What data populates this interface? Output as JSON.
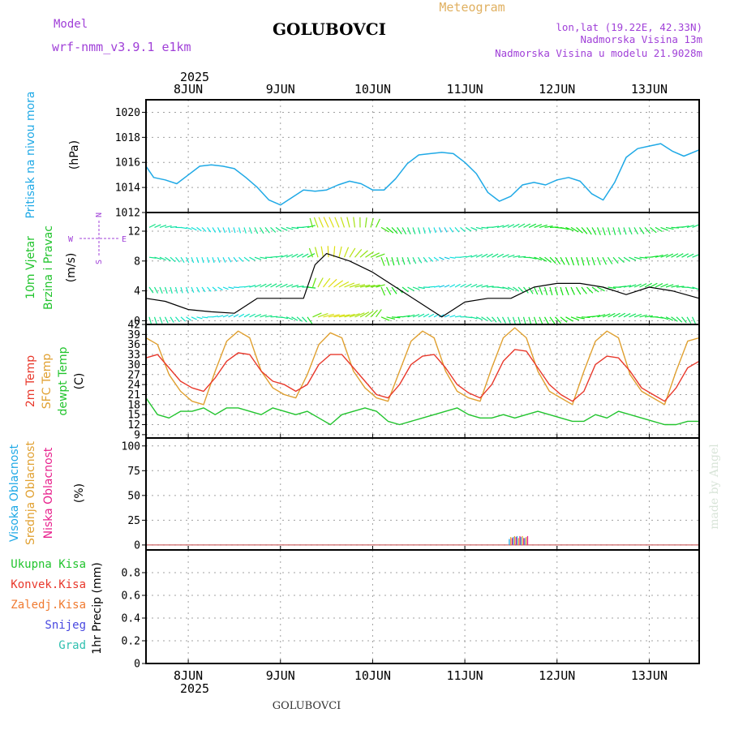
{
  "header": {
    "model_label": "Model",
    "model_name": "wrf-nmm_v3.9.1 e1km",
    "station": "GOLUBOVCI",
    "meteogram": "Meteogram",
    "lonlat": "lon,lat (19.22E, 42.33N)",
    "altitude": "Nadmorska Visina 13m",
    "model_altitude": "Nadmorska Visina u modelu 21.9028m"
  },
  "footer": {
    "station": "GOLUBOVCI",
    "credit": "made by Angel"
  },
  "colors": {
    "pressure": "#1fa9e6",
    "temp2m": "#e8382b",
    "sfc": "#e0a030",
    "dewpt": "#22c42e",
    "purple": "#a040d8",
    "axis": "#000000",
    "grid": "#a0a0a0"
  },
  "chart_data": [
    {
      "type": "line",
      "panel": "pressure",
      "ylabel_main": "Pritisak na nivou mora",
      "ylabel_unit": "(hPa)",
      "ylim": [
        1012,
        1021
      ],
      "yticks": [
        "1012",
        "1014",
        "1016",
        "1018",
        "1020"
      ],
      "x_start": "2025-06-07 13:00",
      "x_end": "2025-06-13 13:00",
      "x": [
        "2025-06-07 13:00",
        "2025-06-07 15:00",
        "2025-06-07 18:00",
        "2025-06-07 21:00",
        "2025-06-08 00:00",
        "2025-06-08 03:00",
        "2025-06-08 06:00",
        "2025-06-08 09:00",
        "2025-06-08 12:00",
        "2025-06-08 15:00",
        "2025-06-08 18:00",
        "2025-06-08 21:00",
        "2025-06-09 00:00",
        "2025-06-09 03:00",
        "2025-06-09 06:00",
        "2025-06-09 09:00",
        "2025-06-09 12:00",
        "2025-06-09 15:00",
        "2025-06-09 18:00",
        "2025-06-09 21:00",
        "2025-06-10 00:00",
        "2025-06-10 03:00",
        "2025-06-10 06:00",
        "2025-06-10 09:00",
        "2025-06-10 12:00",
        "2025-06-10 15:00",
        "2025-06-10 18:00",
        "2025-06-10 21:00",
        "2025-06-11 00:00",
        "2025-06-11 03:00",
        "2025-06-11 06:00",
        "2025-06-11 09:00",
        "2025-06-11 12:00",
        "2025-06-11 15:00",
        "2025-06-11 18:00",
        "2025-06-11 21:00",
        "2025-06-12 00:00",
        "2025-06-12 03:00",
        "2025-06-12 06:00",
        "2025-06-12 09:00",
        "2025-06-12 12:00",
        "2025-06-12 15:00",
        "2025-06-12 18:00",
        "2025-06-12 21:00",
        "2025-06-13 00:00",
        "2025-06-13 03:00",
        "2025-06-13 06:00",
        "2025-06-13 09:00",
        "2025-06-13 13:00"
      ],
      "series": [
        {
          "values": [
            1015.7,
            1014.8,
            1014.6,
            1014.3,
            1015.0,
            1015.7,
            1015.8,
            1015.7,
            1015.5,
            1014.8,
            1014.0,
            1013.0,
            1012.6,
            1013.2,
            1013.8,
            1013.7,
            1013.8,
            1014.2,
            1014.5,
            1014.3,
            1013.8,
            1013.8,
            1014.7,
            1015.9,
            1016.6,
            1016.7,
            1016.8,
            1016.7,
            1016.0,
            1015.1,
            1013.6,
            1012.9,
            1013.3,
            1014.2,
            1014.4,
            1014.2,
            1014.6,
            1014.8,
            1014.5,
            1013.5,
            1013.0,
            1014.4,
            1016.4,
            1017.1,
            1017.3,
            1017.5,
            1016.9,
            1016.5,
            1017.0
          ]
        }
      ]
    },
    {
      "type": "line",
      "panel": "wind",
      "ylabel_main": "10m Vjetar",
      "ylabel_second": "Brzina i Pravac",
      "ylabel_unit": "(m/s)",
      "compass": {
        "n": "N",
        "w": "W",
        "e": "E",
        "s": "S"
      },
      "ylim": [
        -0.5,
        14.5
      ],
      "yticks": [
        "0",
        "4",
        "8",
        "12"
      ],
      "x_start": "2025-06-07 13:00",
      "x_end": "2025-06-13 13:00",
      "x": [
        "2025-06-07 13:00",
        "2025-06-07 18:00",
        "2025-06-08 00:00",
        "2025-06-08 06:00",
        "2025-06-08 12:00",
        "2025-06-08 18:00",
        "2025-06-09 00:00",
        "2025-06-09 06:00",
        "2025-06-09 09:00",
        "2025-06-09 12:00",
        "2025-06-09 18:00",
        "2025-06-10 00:00",
        "2025-06-10 06:00",
        "2025-06-10 12:00",
        "2025-06-10 18:00",
        "2025-06-11 00:00",
        "2025-06-11 06:00",
        "2025-06-11 12:00",
        "2025-06-11 18:00",
        "2025-06-12 00:00",
        "2025-06-12 06:00",
        "2025-06-12 12:00",
        "2025-06-12 18:00",
        "2025-06-13 00:00",
        "2025-06-13 06:00",
        "2025-06-13 13:00"
      ],
      "series": [
        {
          "values": [
            3.0,
            2.6,
            1.5,
            1.2,
            1.0,
            3.0,
            3.0,
            3.0,
            7.5,
            9.0,
            8.0,
            6.5,
            4.5,
            2.5,
            0.5,
            2.5,
            3.0,
            3.0,
            4.5,
            5.0,
            5.0,
            4.5,
            3.5,
            4.5,
            4.0,
            3.0
          ]
        }
      ]
    },
    {
      "type": "line",
      "panel": "temperature",
      "ylabel_lines": [
        "2m Temp",
        "SFC Temp",
        "dewpt Temp"
      ],
      "ylabel_unit": "(C)",
      "ylim": [
        8,
        42
      ],
      "yticks": [
        "9",
        "12",
        "15",
        "18",
        "21",
        "24",
        "27",
        "30",
        "33",
        "36",
        "39",
        "42"
      ],
      "x_start": "2025-06-07 13:00",
      "x_end": "2025-06-13 13:00",
      "x": [
        "2025-06-07 13:00",
        "2025-06-07 16:00",
        "2025-06-07 19:00",
        "2025-06-07 22:00",
        "2025-06-08 01:00",
        "2025-06-08 04:00",
        "2025-06-08 07:00",
        "2025-06-08 10:00",
        "2025-06-08 13:00",
        "2025-06-08 16:00",
        "2025-06-08 19:00",
        "2025-06-08 22:00",
        "2025-06-09 01:00",
        "2025-06-09 04:00",
        "2025-06-09 07:00",
        "2025-06-09 10:00",
        "2025-06-09 13:00",
        "2025-06-09 16:00",
        "2025-06-09 19:00",
        "2025-06-09 22:00",
        "2025-06-10 01:00",
        "2025-06-10 04:00",
        "2025-06-10 07:00",
        "2025-06-10 10:00",
        "2025-06-10 13:00",
        "2025-06-10 16:00",
        "2025-06-10 19:00",
        "2025-06-10 22:00",
        "2025-06-11 01:00",
        "2025-06-11 04:00",
        "2025-06-11 07:00",
        "2025-06-11 10:00",
        "2025-06-11 13:00",
        "2025-06-11 16:00",
        "2025-06-11 19:00",
        "2025-06-11 22:00",
        "2025-06-12 01:00",
        "2025-06-12 04:00",
        "2025-06-12 07:00",
        "2025-06-12 10:00",
        "2025-06-12 13:00",
        "2025-06-12 16:00",
        "2025-06-12 19:00",
        "2025-06-12 22:00",
        "2025-06-13 01:00",
        "2025-06-13 04:00",
        "2025-06-13 07:00",
        "2025-06-13 10:00",
        "2025-06-13 13:00"
      ],
      "series": [
        {
          "name": "2m Temp",
          "values": [
            32,
            33,
            29,
            25,
            23,
            22,
            26,
            31,
            33.5,
            33,
            28,
            25,
            24,
            22,
            24,
            30,
            33,
            33,
            29,
            25,
            21,
            20,
            24,
            30,
            32.5,
            33,
            29,
            24,
            21.5,
            20,
            24,
            31,
            34.5,
            34,
            29,
            24,
            21,
            19,
            22,
            30,
            32.5,
            32,
            28,
            23,
            21,
            19,
            23,
            29,
            31
          ]
        },
        {
          "name": "SFC Temp",
          "values": [
            38,
            36,
            27,
            22,
            19,
            18,
            28,
            37,
            40,
            38,
            28,
            23,
            21,
            20,
            27,
            36,
            39.5,
            38,
            28,
            23,
            20,
            19,
            28,
            37,
            40,
            38,
            28,
            22,
            20,
            19,
            29,
            38,
            41,
            38,
            28,
            22,
            20,
            18,
            28,
            37,
            40,
            38,
            27,
            22,
            20,
            18,
            28,
            37,
            38
          ]
        },
        {
          "name": "dewpt Temp",
          "values": [
            20,
            15,
            14,
            16,
            16,
            17,
            15,
            17,
            17,
            16,
            15,
            17,
            16,
            15,
            16,
            14,
            12,
            15,
            16,
            17,
            16,
            13,
            12,
            13,
            14,
            15,
            16,
            17,
            15,
            14,
            14,
            15,
            14,
            15,
            16,
            15,
            14,
            13,
            13,
            15,
            14,
            16,
            15,
            14,
            13,
            12,
            12,
            13,
            13
          ]
        }
      ]
    },
    {
      "type": "bar",
      "panel": "cloud",
      "ylabel_lines": [
        "Visoka Oblacnost",
        "Srednja Oblacnost",
        "Niska Oblacnost"
      ],
      "ylabel_unit": "(%)",
      "ylim": [
        -5,
        108
      ],
      "yticks": [
        "0",
        "25",
        "50",
        "75",
        "100"
      ],
      "x_start": "2025-06-07 13:00",
      "x_end": "2025-06-13 13:00",
      "series": [
        {
          "name": "Visoka Oblacnost",
          "x": [
            "2025-06-11 12:00",
            "2025-06-11 13:00",
            "2025-06-11 14:00",
            "2025-06-11 15:00",
            "2025-06-11 16:00"
          ],
          "values": [
            6,
            8,
            9,
            8,
            7
          ]
        },
        {
          "name": "Srednja Oblacnost",
          "x": [
            "2025-06-11 12:00",
            "2025-06-11 13:00",
            "2025-06-11 14:00",
            "2025-06-11 15:00",
            "2025-06-11 16:00"
          ],
          "values": [
            8,
            9,
            7,
            9,
            8
          ]
        },
        {
          "name": "Niska Oblacnost",
          "x": [
            "2025-06-11 12:00",
            "2025-06-11 13:00",
            "2025-06-11 14:00",
            "2025-06-11 15:00",
            "2025-06-11 16:00"
          ],
          "values": [
            7,
            8,
            9,
            7,
            9
          ]
        }
      ]
    },
    {
      "type": "bar",
      "panel": "precip",
      "ylabel_main": "1hr Precip (mm)",
      "legend": [
        "Ukupna Kisa",
        "Konvek.Kisa",
        "Zaledj.Kisa",
        "Snijeg",
        "Grad"
      ],
      "ylim": [
        0,
        1.0
      ],
      "yticks": [
        "0",
        "0.2",
        "0.4",
        "0.6",
        "0.8"
      ],
      "x_start": "2025-06-07 13:00",
      "x_end": "2025-06-13 13:00",
      "values": []
    }
  ],
  "x_axis": {
    "year": "2025",
    "days": [
      "8JUN",
      "9JUN",
      "10JUN",
      "11JUN",
      "12JUN",
      "13JUN"
    ]
  }
}
